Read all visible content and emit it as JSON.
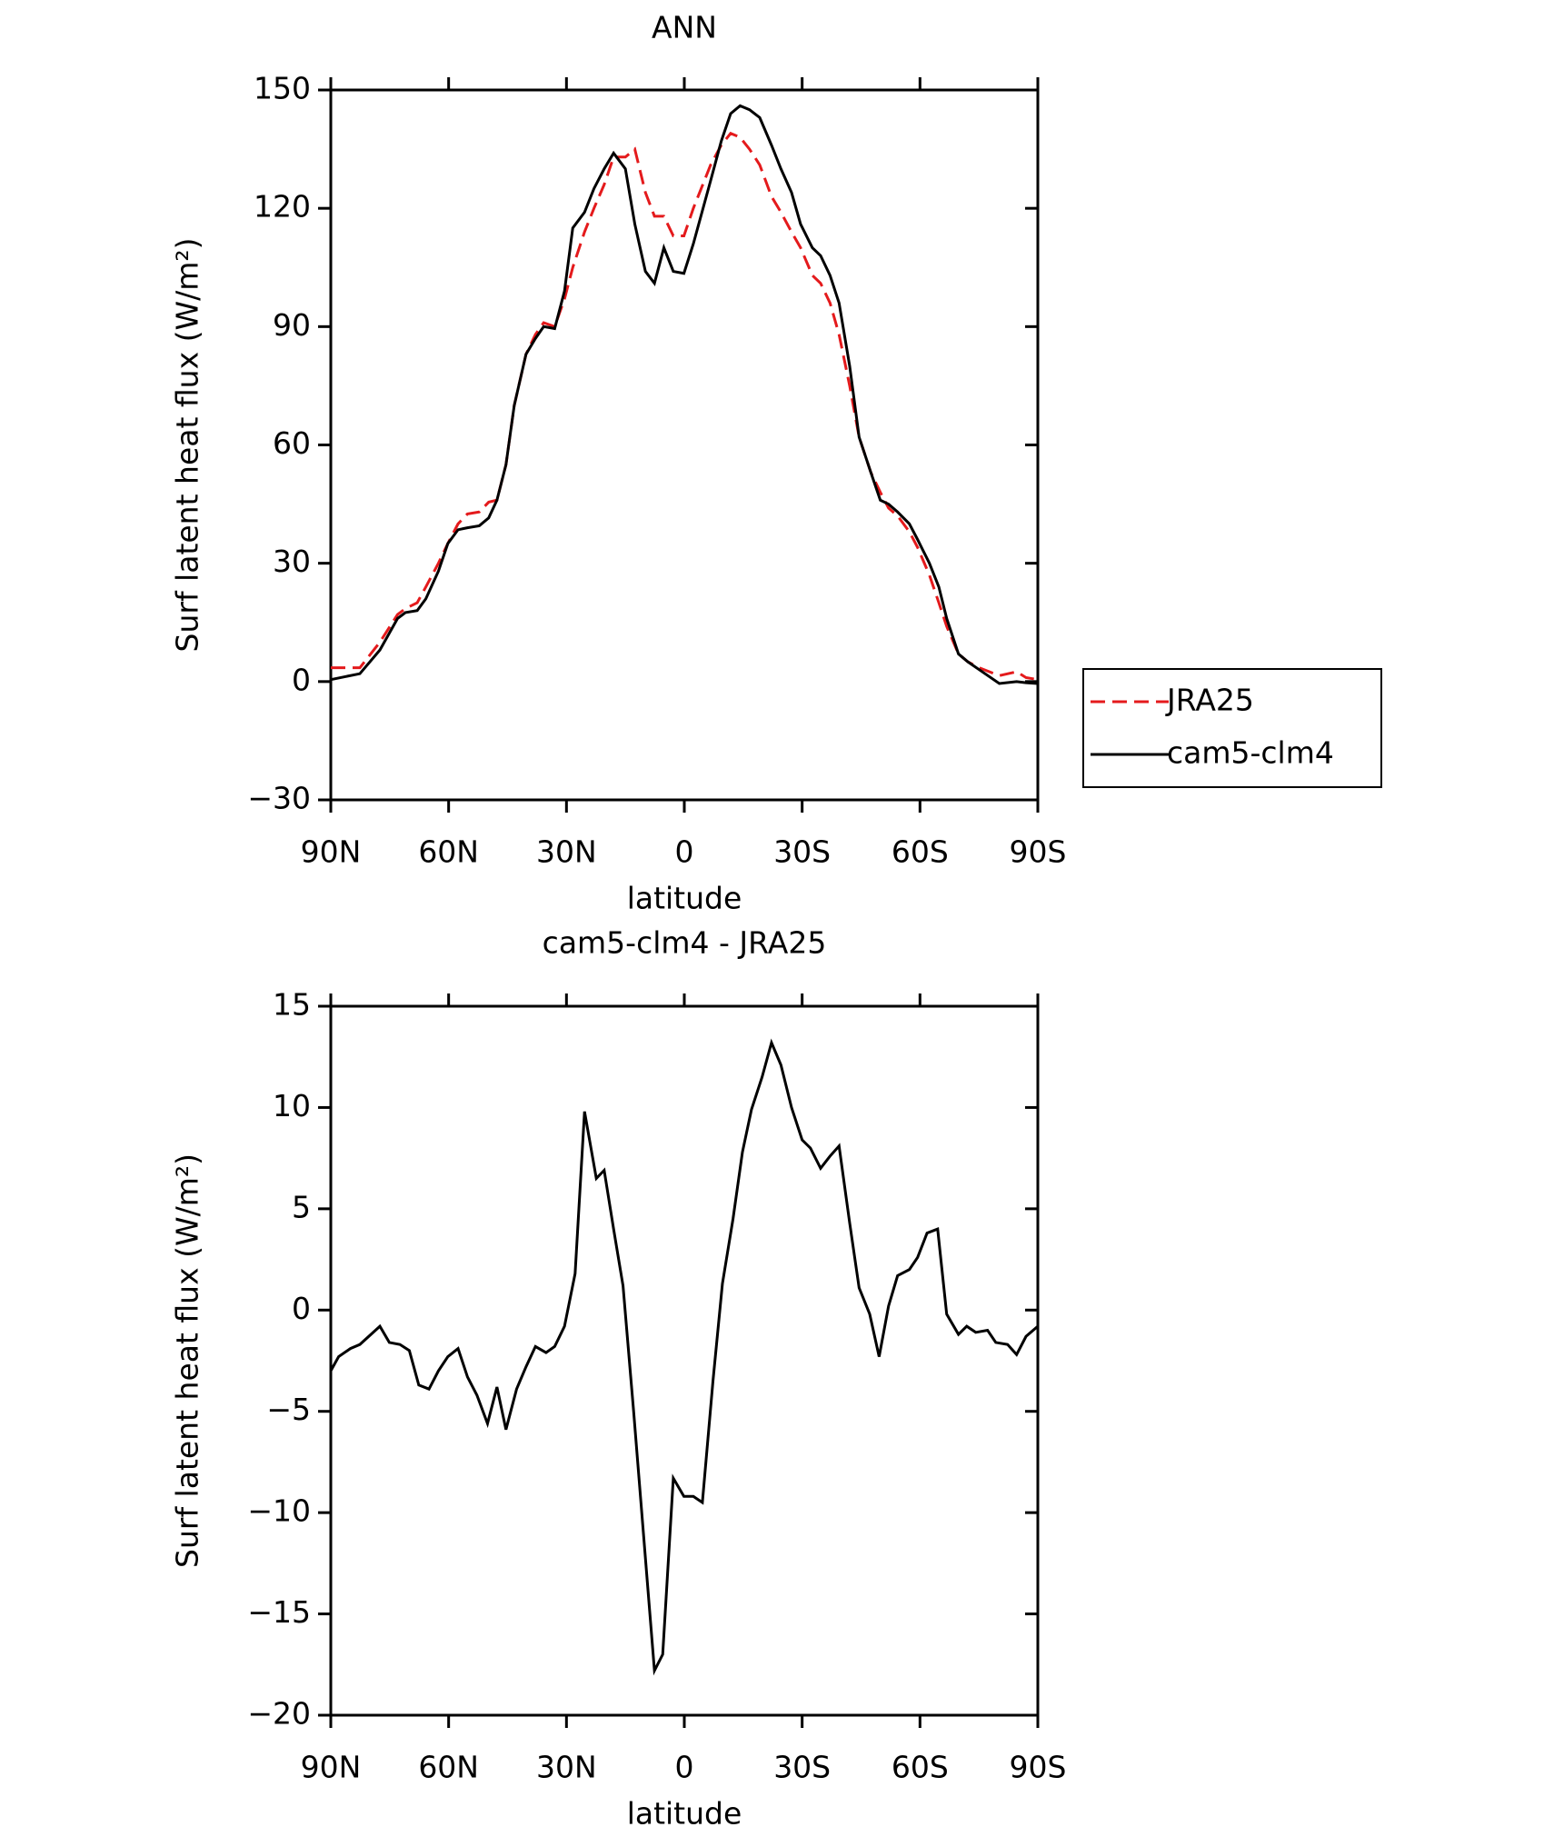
{
  "chart_data": [
    {
      "type": "line",
      "title": "ANN",
      "xlabel": "latitude",
      "ylabel": "Surf latent heat flux (W/m²)",
      "x": [
        90,
        82.6,
        77.5,
        73,
        71,
        68,
        65.8,
        62.6,
        60.2,
        57.6,
        55.2,
        52.2,
        49.8,
        47.7,
        45.4,
        43.3,
        40.3,
        37.9,
        35.8,
        33,
        30.5,
        28.4,
        25.4,
        23,
        20.4,
        18,
        15,
        12.6,
        9.9,
        7.6,
        5.2,
        2.8,
        0.1,
        -2.3,
        -6.7,
        -9.4,
        -11.8,
        -14.2,
        -16.6,
        -19.2,
        -22.2,
        -24.6,
        -27.3,
        -29.6,
        -32.6,
        -34.7,
        -37.1,
        -39.4,
        -42.1,
        -44.5,
        -47.5,
        -49.9,
        -52,
        -54.3,
        -57.3,
        -59.4,
        -62.4,
        -64.8,
        -66.8,
        -69.8,
        -72.2,
        -75.1,
        -80.2,
        -84.6,
        -87,
        -90
      ],
      "series": [
        {
          "name": "JRA25",
          "color": "#e41a1c",
          "line_style": "dashed",
          "values": [
            3.5,
            3.5,
            10,
            17,
            18.5,
            20,
            24,
            30,
            35,
            40,
            42.5,
            43,
            45.5,
            46,
            55,
            70,
            83,
            88,
            91,
            90,
            97,
            105,
            114,
            120,
            126,
            133,
            133,
            135,
            124,
            118,
            118,
            113,
            113,
            120,
            131,
            136,
            139,
            138,
            135,
            131,
            123,
            119,
            114,
            110,
            103,
            101,
            96,
            88,
            75,
            62,
            53,
            48,
            44,
            42,
            38,
            34,
            27,
            20,
            14,
            7,
            5,
            3.5,
            1.5,
            2.5,
            1,
            0.5
          ]
        },
        {
          "name": "cam5-clm4",
          "color": "#000000",
          "line_style": "solid",
          "values": [
            0.5,
            2,
            8,
            16,
            17.5,
            18,
            21,
            28,
            35,
            38.5,
            39,
            39.5,
            41.5,
            46,
            55,
            70,
            83,
            87,
            90,
            89.5,
            99,
            115,
            119,
            125,
            130,
            134,
            130,
            116,
            104,
            101,
            110,
            104,
            103.5,
            111,
            127,
            137,
            144,
            146,
            145,
            143,
            136,
            130,
            124,
            116,
            110,
            108,
            103,
            96,
            80,
            62,
            53,
            46,
            45,
            43,
            40,
            36,
            30,
            24,
            16,
            7,
            5,
            3,
            -0.5,
            0,
            -0.3,
            -0.5
          ]
        }
      ],
      "xlim": [
        90,
        -90
      ],
      "xticks": [
        {
          "value": 90,
          "label": "90N"
        },
        {
          "value": 60,
          "label": "60N"
        },
        {
          "value": 30,
          "label": "30N"
        },
        0,
        {
          "value": -30,
          "label": "30S"
        },
        {
          "value": -60,
          "label": "60S"
        },
        {
          "value": -90,
          "label": "90S"
        }
      ],
      "ylim": [
        -30,
        150
      ],
      "yticks": [
        {
          "value": -30,
          "label": "−30"
        },
        0,
        30,
        60,
        90,
        120,
        150
      ],
      "legend": "right"
    },
    {
      "type": "line",
      "title": "cam5-clm4 - JRA25",
      "xlabel": "latitude",
      "ylabel": "Surf latent heat flux (W/m²)",
      "x": [
        90,
        88,
        85,
        82.6,
        77.5,
        75.1,
        72.4,
        70,
        67.6,
        65,
        62.6,
        60.2,
        57.6,
        55.2,
        52.8,
        50.1,
        47.7,
        45.4,
        42.7,
        40.3,
        37.9,
        35.2,
        33,
        30.5,
        27.8,
        25.4,
        22.4,
        20.4,
        18,
        15.6,
        12.9,
        10.5,
        7.6,
        5.5,
        2.8,
        0.1,
        -2.3,
        -4.6,
        -7.3,
        -9.7,
        -12.4,
        -14.8,
        -17.1,
        -19.8,
        -22.2,
        -24.6,
        -27.3,
        -30,
        -32.1,
        -34.7,
        -37.1,
        -39.4,
        -42.1,
        -44.5,
        -47.2,
        -49.6,
        -52,
        -54.3,
        -57.3,
        -59.4,
        -61.8,
        -64.5,
        -66.8,
        -69.8,
        -71.9,
        -74.2,
        -77.2,
        -79.3,
        -82.3,
        -84.6,
        -87,
        -90
      ],
      "series": [
        {
          "color": "#000000",
          "line_style": "solid",
          "values": [
            -3,
            -2.3,
            -1.9,
            -1.7,
            -0.8,
            -1.6,
            -1.7,
            -2,
            -3.7,
            -3.9,
            -3,
            -2.3,
            -1.9,
            -3.3,
            -4.2,
            -5.6,
            -3.8,
            -5.9,
            -3.9,
            -2.8,
            -1.8,
            -2.1,
            -1.8,
            -0.8,
            1.8,
            9.8,
            6.5,
            6.9,
            4,
            1.2,
            -5,
            -10.8,
            -17.8,
            -17,
            -8.3,
            -9.2,
            -9.2,
            -9.5,
            -3.5,
            1.3,
            4.5,
            7.8,
            9.9,
            11.5,
            13.2,
            12.1,
            10,
            8.4,
            8,
            7,
            7.6,
            8.1,
            4.3,
            1.1,
            -0.2,
            -2.3,
            0.2,
            1.7,
            2,
            2.6,
            3.8,
            4,
            -0.2,
            -1.2,
            -0.8,
            -1.1,
            -1,
            -1.6,
            -1.7,
            -2.2,
            -1.3,
            -0.8
          ]
        }
      ],
      "xlim": [
        90,
        -90
      ],
      "xticks": [
        {
          "value": 90,
          "label": "90N"
        },
        {
          "value": 60,
          "label": "60N"
        },
        {
          "value": 30,
          "label": "30N"
        },
        0,
        {
          "value": -30,
          "label": "30S"
        },
        {
          "value": -60,
          "label": "60S"
        },
        {
          "value": -90,
          "label": "90S"
        }
      ],
      "ylim": [
        -20,
        15
      ],
      "yticks": [
        {
          "value": -20,
          "label": "−20"
        },
        {
          "value": -15,
          "label": "−15"
        },
        {
          "value": -10,
          "label": "−10"
        },
        {
          "value": -5,
          "label": "−5"
        },
        0,
        5,
        10,
        15
      ]
    }
  ]
}
